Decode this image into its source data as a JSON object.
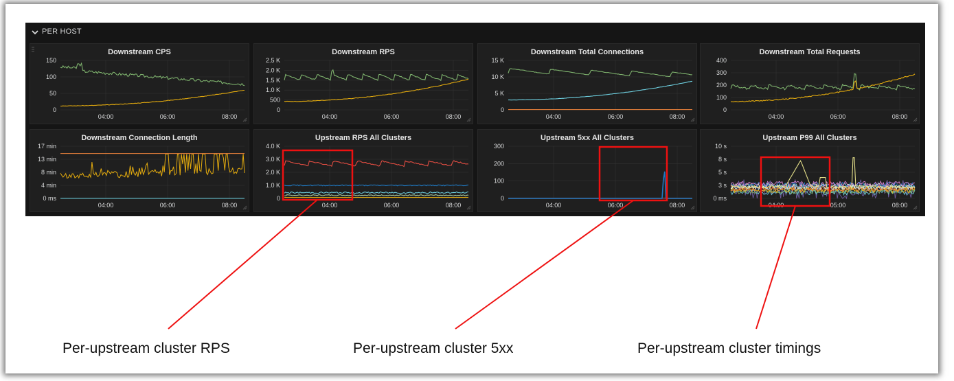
{
  "row": {
    "title": "PER HOST",
    "icon": "chevron-down-icon"
  },
  "panels": [
    {
      "title": "Downstream CPS",
      "yticks": [
        "150",
        "100",
        "50",
        "0"
      ],
      "xticks": [
        "04:00",
        "06:00",
        "08:00"
      ]
    },
    {
      "title": "Downstream RPS",
      "yticks": [
        "2.5 K",
        "2.0 K",
        "1.5 K",
        "1.0 K",
        "500",
        "0"
      ],
      "xticks": [
        "04:00",
        "06:00",
        "08:00"
      ]
    },
    {
      "title": "Downstream Total Connections",
      "yticks": [
        "15 K",
        "10 K",
        "5 K",
        "0"
      ],
      "xticks": [
        "04:00",
        "06:00",
        "08:00"
      ]
    },
    {
      "title": "Downstream Total Requests",
      "yticks": [
        "400",
        "300",
        "200",
        "100",
        "0"
      ],
      "xticks": [
        "04:00",
        "06:00",
        "08:00"
      ]
    },
    {
      "title": "Downstream Connection Length",
      "yticks": [
        "17 min",
        "13 min",
        "8 min",
        "4 min",
        "0 ms"
      ],
      "xticks": [
        "04:00",
        "06:00",
        "08:00"
      ]
    },
    {
      "title": "Upstream RPS All Clusters",
      "yticks": [
        "4.0 K",
        "3.0 K",
        "2.0 K",
        "1.0 K",
        "0"
      ],
      "xticks": [
        "04:00",
        "06:00",
        "08:00"
      ]
    },
    {
      "title": "Upstream 5xx All Clusters",
      "yticks": [
        "300",
        "200",
        "100",
        "0"
      ],
      "xticks": [
        "04:00",
        "06:00",
        "08:00"
      ]
    },
    {
      "title": "Upstream P99 All Clusters",
      "yticks": [
        "10 s",
        "8 s",
        "5 s",
        "3 s",
        "0 ms"
      ],
      "xticks": [
        "04:00",
        "05:00",
        "08:00"
      ]
    }
  ],
  "annotations": [
    {
      "label": "Per-upstream cluster RPS"
    },
    {
      "label": "Per-upstream cluster 5xx"
    },
    {
      "label": "Per-upstream cluster timings"
    }
  ],
  "colors": {
    "green": "#7eb26d",
    "yellow": "#e5ac0e",
    "cyan": "#6ed0e0",
    "orange": "#ef843c",
    "red": "#e24d42",
    "blue": "#1f78c1",
    "purple": "#705da0",
    "highlight": "#ee1111"
  }
}
